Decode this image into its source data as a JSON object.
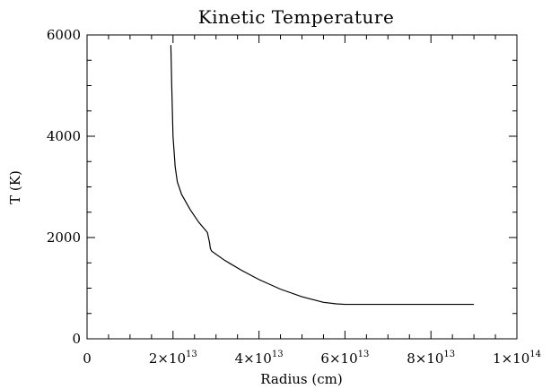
{
  "chart_data": {
    "type": "line",
    "title": "Kinetic Temperature",
    "xlabel": "Radius (cm)",
    "ylabel": "T (K)",
    "xlim": [
      0,
      100000000000000.0
    ],
    "ylim": [
      0,
      6000
    ],
    "x_ticks": [
      {
        "value": 0,
        "mantissa": "0",
        "base": "",
        "exp": ""
      },
      {
        "value": 20000000000000.0,
        "mantissa": "2",
        "base": "×10",
        "exp": "13"
      },
      {
        "value": 40000000000000.0,
        "mantissa": "4",
        "base": "×10",
        "exp": "13"
      },
      {
        "value": 60000000000000.0,
        "mantissa": "6",
        "base": "×10",
        "exp": "13"
      },
      {
        "value": 80000000000000.0,
        "mantissa": "8",
        "base": "×10",
        "exp": "13"
      },
      {
        "value": 100000000000000.0,
        "mantissa": "1",
        "base": "×10",
        "exp": "14"
      }
    ],
    "y_ticks": [
      {
        "value": 0,
        "label": "0"
      },
      {
        "value": 2000,
        "label": "2000"
      },
      {
        "value": 4000,
        "label": "4000"
      },
      {
        "value": 6000,
        "label": "6000"
      }
    ],
    "x_minor_step": 5000000000000.0,
    "y_minor_step": 500,
    "grid": false,
    "line_color": "#000000",
    "series": [
      {
        "x": [
          19500000000000.0,
          19700000000000.0,
          20000000000000.0,
          20500000000000.0,
          21000000000000.0,
          22000000000000.0,
          24000000000000.0,
          26000000000000.0,
          28000000000000.0,
          28500000000000.0,
          28700000000000.0,
          29000000000000.0,
          32000000000000.0,
          36000000000000.0,
          40000000000000.0,
          45000000000000.0,
          50000000000000.0,
          55000000000000.0,
          58000000000000.0,
          60000000000000.0,
          70000000000000.0,
          80000000000000.0,
          90000000000000.0
        ],
        "y": [
          5800,
          5000,
          4000,
          3400,
          3100,
          2850,
          2550,
          2300,
          2100,
          1900,
          1780,
          1730,
          1550,
          1350,
          1170,
          980,
          830,
          720,
          690,
          680,
          680,
          680,
          680
        ]
      }
    ]
  }
}
